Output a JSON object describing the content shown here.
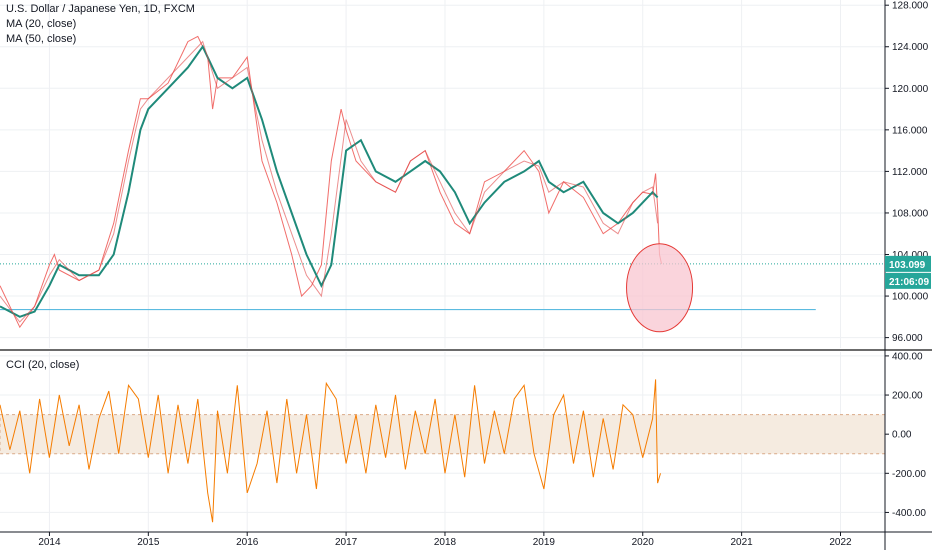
{
  "legend": {
    "title": "U.S. Dollar / Japanese Yen, 1D, FXCM",
    "ma20": "MA (20, close)",
    "ma50": "MA (50, close)",
    "cci": "CCI (20, close)"
  },
  "colors": {
    "up_candle": "#26a69a",
    "down_candle": "#ef5350",
    "ma20": "#e04444",
    "ma50": "#1f8a7a",
    "support_line": "#5bbbe0",
    "price_line": "#26a69a",
    "cci_line": "#f57c00",
    "cci_band": "#f5ebe0",
    "highlight_fill": "#f8c5d0",
    "highlight_stroke": "#e53935",
    "badge_bg": "#26a69a"
  },
  "badges": {
    "price": "103.099",
    "countdown": "21:06:09"
  },
  "chart_data": [
    {
      "type": "line",
      "name": "price-pane",
      "title": "U.S. Dollar / Japanese Yen, 1D, FXCM",
      "x_ticks": [
        "2014",
        "2015",
        "2016",
        "2017",
        "2018",
        "2019",
        "2020",
        "2021",
        "2022"
      ],
      "y_ticks": [
        "128.000",
        "124.000",
        "120.000",
        "116.000",
        "112.000",
        "108.000",
        "104.000",
        "100.000",
        "96.000"
      ],
      "ylim": [
        95,
        128.5
      ],
      "xlim": [
        2013.5,
        2022.45
      ],
      "series": [
        {
          "name": "MA (50, close)",
          "x": [
            2013.5,
            2013.7,
            2013.85,
            2014.0,
            2014.1,
            2014.3,
            2014.5,
            2014.65,
            2014.8,
            2014.92,
            2015.0,
            2015.2,
            2015.4,
            2015.55,
            2015.7,
            2015.85,
            2016.0,
            2016.15,
            2016.3,
            2016.45,
            2016.6,
            2016.75,
            2016.85,
            2017.0,
            2017.15,
            2017.3,
            2017.5,
            2017.65,
            2017.8,
            2017.95,
            2018.1,
            2018.25,
            2018.4,
            2018.6,
            2018.8,
            2018.95,
            2019.05,
            2019.2,
            2019.4,
            2019.6,
            2019.75,
            2019.9,
            2020.0,
            2020.1,
            2020.15
          ],
          "y": [
            99,
            98,
            98.5,
            101,
            103,
            102,
            102,
            104,
            110,
            116,
            118,
            120,
            122,
            124,
            121,
            120,
            121,
            117,
            112,
            108,
            104,
            101,
            103,
            114,
            115,
            112,
            111,
            112,
            113,
            112,
            110,
            107,
            109,
            111,
            112,
            113,
            111,
            110,
            111,
            108,
            107,
            108,
            109,
            110,
            109.5
          ]
        },
        {
          "name": "MA (20, close)",
          "x": [
            2013.5,
            2013.7,
            2013.85,
            2014.0,
            2014.1,
            2014.3,
            2014.5,
            2014.65,
            2014.8,
            2014.92,
            2015.0,
            2015.2,
            2015.4,
            2015.55,
            2015.7,
            2015.85,
            2016.0,
            2016.15,
            2016.3,
            2016.45,
            2016.6,
            2016.75,
            2016.85,
            2017.0,
            2017.15,
            2017.3,
            2017.5,
            2017.65,
            2017.8,
            2017.95,
            2018.1,
            2018.25,
            2018.4,
            2018.6,
            2018.8,
            2018.95,
            2019.05,
            2019.2,
            2019.4,
            2019.6,
            2019.75,
            2019.9,
            2020.0,
            2020.1,
            2020.15
          ],
          "y": [
            100,
            97.5,
            99,
            102,
            103.5,
            101.5,
            102.5,
            106,
            113,
            118,
            119,
            121,
            123,
            124.5,
            120,
            121,
            122,
            115,
            110,
            106,
            102,
            100,
            106,
            117,
            113,
            111,
            110,
            113,
            114,
            111,
            108,
            106,
            110,
            112,
            113,
            112.5,
            110,
            111,
            110.5,
            107,
            106,
            109,
            110,
            110.5,
            107
          ]
        },
        {
          "name": "USD/JPY",
          "x": [
            2013.5,
            2013.7,
            2013.85,
            2014.0,
            2014.05,
            2014.1,
            2014.3,
            2014.5,
            2014.65,
            2014.8,
            2014.92,
            2015.0,
            2015.2,
            2015.4,
            2015.5,
            2015.6,
            2015.65,
            2015.7,
            2015.85,
            2016.0,
            2016.15,
            2016.3,
            2016.45,
            2016.55,
            2016.65,
            2016.75,
            2016.85,
            2016.95,
            2017.0,
            2017.1,
            2017.3,
            2017.5,
            2017.65,
            2017.8,
            2017.95,
            2018.1,
            2018.25,
            2018.4,
            2018.6,
            2018.8,
            2018.95,
            2019.0,
            2019.05,
            2019.2,
            2019.4,
            2019.6,
            2019.75,
            2019.9,
            2020.0,
            2020.1,
            2020.13,
            2020.15,
            2020.17,
            2020.19
          ],
          "y": [
            101,
            97,
            99,
            103,
            104,
            102.5,
            101.5,
            102.5,
            107,
            114,
            119,
            119,
            120.5,
            124.5,
            125,
            123,
            118,
            121,
            121,
            123,
            113,
            109,
            104,
            100,
            101,
            103,
            113,
            118,
            116,
            113,
            111,
            110,
            113,
            114,
            110,
            107,
            106,
            111,
            112,
            114,
            112,
            110,
            108,
            111,
            109.5,
            106,
            107,
            109,
            110,
            109.8,
            111.8,
            108.5,
            104,
            103.1
          ]
        }
      ],
      "horizontal_lines": [
        {
          "name": "support",
          "y": 98.7,
          "x_from": 2013.5,
          "x_to": 2021.75
        },
        {
          "name": "last-price",
          "y": 103.099
        }
      ],
      "highlight": {
        "x": 2020.17,
        "y": 100.8
      }
    },
    {
      "type": "line",
      "name": "cci-pane",
      "title": "CCI (20, close)",
      "y_ticks": [
        "400.00",
        "200.00",
        "0.00",
        "-200.00",
        "-400.00"
      ],
      "ylim": [
        -500,
        420
      ],
      "band": [
        -100,
        100
      ],
      "series": [
        {
          "name": "CCI (20, close)",
          "x": [
            2013.5,
            2013.6,
            2013.7,
            2013.8,
            2013.9,
            2014.0,
            2014.1,
            2014.2,
            2014.3,
            2014.4,
            2014.5,
            2014.6,
            2014.7,
            2014.8,
            2014.9,
            2015.0,
            2015.1,
            2015.2,
            2015.3,
            2015.4,
            2015.5,
            2015.6,
            2015.65,
            2015.7,
            2015.8,
            2015.9,
            2016.0,
            2016.1,
            2016.2,
            2016.3,
            2016.4,
            2016.5,
            2016.6,
            2016.7,
            2016.8,
            2016.9,
            2017.0,
            2017.1,
            2017.2,
            2017.3,
            2017.4,
            2017.5,
            2017.6,
            2017.7,
            2017.8,
            2017.9,
            2018.0,
            2018.1,
            2018.2,
            2018.3,
            2018.4,
            2018.5,
            2018.6,
            2018.7,
            2018.8,
            2018.9,
            2019.0,
            2019.1,
            2019.2,
            2019.3,
            2019.4,
            2019.5,
            2019.6,
            2019.7,
            2019.8,
            2019.9,
            2020.0,
            2020.1,
            2020.13,
            2020.15,
            2020.18
          ],
          "y": [
            150,
            -80,
            120,
            -200,
            180,
            -120,
            200,
            -60,
            150,
            -180,
            80,
            220,
            -100,
            250,
            180,
            -120,
            200,
            -200,
            150,
            -150,
            180,
            -300,
            -450,
            120,
            -200,
            250,
            -300,
            -150,
            120,
            -250,
            180,
            -200,
            100,
            -280,
            260,
            180,
            -150,
            100,
            -200,
            150,
            -120,
            200,
            -180,
            120,
            -100,
            180,
            -200,
            100,
            -220,
            250,
            -150,
            120,
            -100,
            180,
            250,
            -100,
            -280,
            100,
            200,
            -150,
            120,
            -220,
            80,
            -180,
            150,
            100,
            -120,
            80,
            280,
            -250,
            -200
          ]
        }
      ]
    }
  ]
}
